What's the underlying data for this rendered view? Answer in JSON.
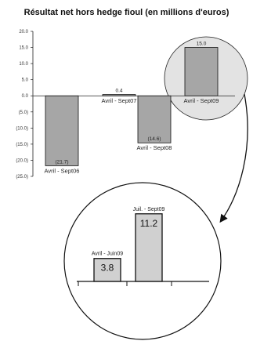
{
  "chart_data": [
    {
      "type": "bar",
      "title": "Résultat net hors hedge fioul (en millions d'euros)",
      "categories": [
        "Avril - Sept06",
        "Avril - Sept07",
        "Avril - Sept08",
        "Avril - Sept09"
      ],
      "values": [
        -21.7,
        0.4,
        -14.6,
        15.0
      ],
      "value_labels": [
        "(21.7)",
        "0.4",
        "(14.6)",
        "15.0"
      ],
      "y_tick_labels": [
        "20.0",
        "15.0",
        "10.0",
        "5.0",
        "0.0",
        "(5.0)",
        "(10.0)",
        "(15.0)",
        "(20.0)",
        "(25.0)"
      ],
      "ylim": [
        -25,
        20
      ],
      "grid": false,
      "colors": {
        "bar": "#a6a6a6",
        "highlight_circle": "#e3e3e3"
      }
    },
    {
      "type": "bar",
      "categories": [
        "Avril - Juin09",
        "Juil. - Sept09"
      ],
      "values": [
        3.8,
        11.2
      ],
      "value_labels": [
        "3.8",
        "11.2"
      ],
      "grid": false,
      "colors": {
        "bar": "#d0d0d0"
      }
    }
  ]
}
